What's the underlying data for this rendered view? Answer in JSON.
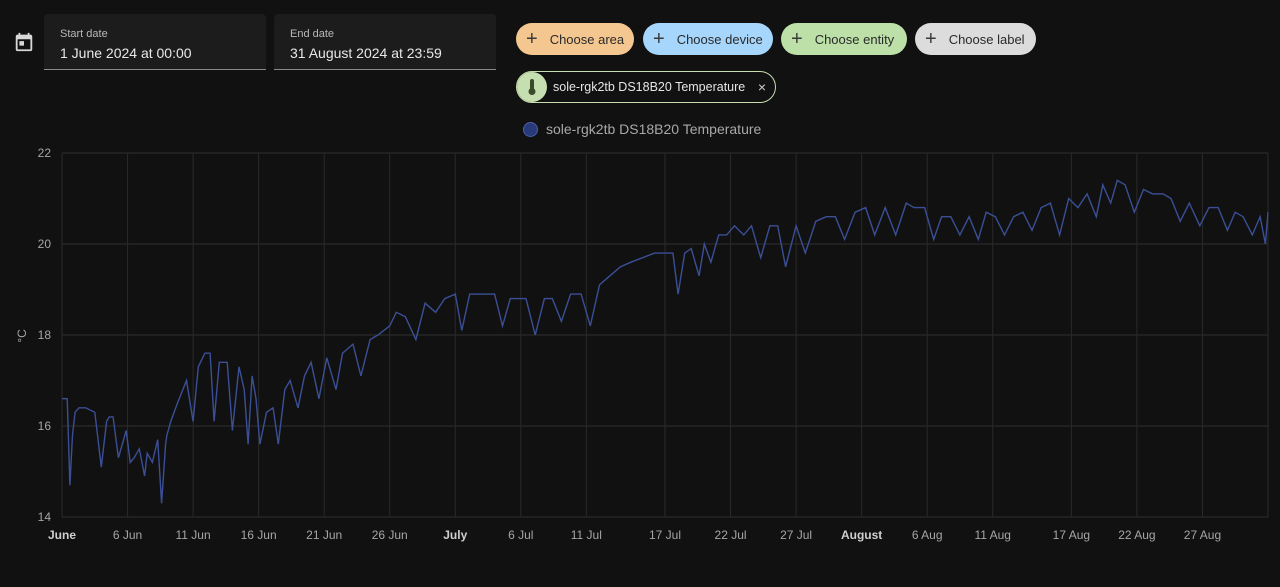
{
  "date_range": {
    "start_label": "Start date",
    "start_value": "1 June 2024 at 00:00",
    "end_label": "End date",
    "end_value": "31 August 2024 at 23:59"
  },
  "target_chips": [
    {
      "label": "Choose area",
      "color": "#f5c790"
    },
    {
      "label": "Choose device",
      "color": "#a6d6fb"
    },
    {
      "label": "Choose entity",
      "color": "#bce0a7"
    },
    {
      "label": "Choose label",
      "color": "#dcdcdc"
    }
  ],
  "selected_entity": {
    "name": "sole-rgk2tb DS18B20 Temperature",
    "icon": "thermometer-icon",
    "remove": "×"
  },
  "chart_data": {
    "type": "line",
    "legend_position": "top-center",
    "ylabel": "°C",
    "ylim": [
      14,
      22
    ],
    "yticks": [
      14,
      16,
      18,
      20,
      22
    ],
    "xlim_day": [
      1,
      93
    ],
    "grid": true,
    "x_ticks": [
      {
        "label": "June",
        "day": 1,
        "bold": true
      },
      {
        "label": "6 Jun",
        "day": 6
      },
      {
        "label": "11 Jun",
        "day": 11
      },
      {
        "label": "16 Jun",
        "day": 16
      },
      {
        "label": "21 Jun",
        "day": 21
      },
      {
        "label": "26 Jun",
        "day": 26
      },
      {
        "label": "July",
        "day": 31,
        "bold": true
      },
      {
        "label": "6 Jul",
        "day": 36
      },
      {
        "label": "11 Jul",
        "day": 41
      },
      {
        "label": "17 Jul",
        "day": 47
      },
      {
        "label": "22 Jul",
        "day": 52
      },
      {
        "label": "27 Jul",
        "day": 57
      },
      {
        "label": "August",
        "day": 62,
        "bold": true
      },
      {
        "label": "6 Aug",
        "day": 67
      },
      {
        "label": "11 Aug",
        "day": 72
      },
      {
        "label": "17 Aug",
        "day": 78
      },
      {
        "label": "22 Aug",
        "day": 83
      },
      {
        "label": "27 Aug",
        "day": 88
      }
    ],
    "series": [
      {
        "name": "sole-rgk2tb DS18B20 Temperature",
        "color": "#3b4f96",
        "x": [
          1,
          1.4,
          1.6,
          1.8,
          2,
          2.3,
          2.8,
          3.5,
          4,
          4.4,
          4.6,
          4.9,
          5.3,
          5.9,
          6.2,
          6.5,
          6.9,
          7.3,
          7.5,
          7.9,
          8.3,
          8.6,
          8.9,
          9,
          9.3,
          9.8,
          10.5,
          11,
          11.4,
          11.9,
          12.3,
          12.6,
          13,
          13.4,
          13.6,
          14,
          14.5,
          14.9,
          15.2,
          15.5,
          15.8,
          16.1,
          16.6,
          17.1,
          17.5,
          18,
          18.4,
          19,
          19.5,
          20,
          20.6,
          21.2,
          21.9,
          22.4,
          23.2,
          23.8,
          24.5,
          25.1,
          26,
          26.5,
          27.2,
          28,
          28.7,
          29.5,
          30.2,
          31,
          31.5,
          32.1,
          32.7,
          33.4,
          34,
          34.6,
          35.2,
          35.8,
          36.4,
          37.1,
          37.8,
          38.4,
          39.1,
          39.8,
          40.6,
          41.3,
          42,
          42.8,
          43.6,
          44.4,
          45.3,
          46.2,
          47,
          47.6,
          48,
          48.5,
          49,
          49.6,
          50,
          50.5,
          51.1,
          51.7,
          52.3,
          53,
          53.6,
          54.3,
          55,
          55.6,
          56.2,
          57,
          57.7,
          58.5,
          59.3,
          60,
          60.7,
          61.5,
          62.3,
          63,
          63.8,
          64.6,
          65.4,
          66,
          66.8,
          67.5,
          68.1,
          68.8,
          69.5,
          70.2,
          70.9,
          71.5,
          72.2,
          72.9,
          73.6,
          74.3,
          75,
          75.7,
          76.4,
          77.1,
          77.8,
          78.5,
          79.2,
          79.9,
          80.4,
          81,
          81.5,
          82.1,
          82.8,
          83.5,
          84.2,
          85,
          85.6,
          86.3,
          87,
          87.8,
          88.5,
          89.2,
          89.9,
          90.5,
          91.1,
          91.8,
          92.4,
          92.8,
          93
        ],
        "y": [
          16.6,
          16.6,
          14.7,
          15.8,
          16.3,
          16.4,
          16.4,
          16.3,
          15.1,
          16.1,
          16.2,
          16.2,
          15.3,
          15.9,
          15.2,
          15.3,
          15.5,
          14.9,
          15.4,
          15.2,
          15.7,
          14.3,
          15.6,
          15.8,
          16.1,
          16.5,
          17.0,
          16.1,
          17.3,
          17.6,
          17.6,
          16.1,
          17.4,
          17.4,
          17.4,
          15.9,
          17.3,
          16.8,
          15.6,
          17.1,
          16.6,
          15.6,
          16.3,
          16.4,
          15.6,
          16.8,
          17.0,
          16.4,
          17.1,
          17.4,
          16.6,
          17.5,
          16.8,
          17.6,
          17.8,
          17.1,
          17.9,
          18.0,
          18.2,
          18.5,
          18.4,
          17.9,
          18.7,
          18.5,
          18.8,
          18.9,
          18.1,
          18.9,
          18.9,
          18.9,
          18.9,
          18.2,
          18.8,
          18.8,
          18.8,
          18.0,
          18.8,
          18.8,
          18.3,
          18.9,
          18.9,
          18.2,
          19.1,
          19.3,
          19.5,
          19.6,
          19.7,
          19.8,
          19.8,
          19.8,
          18.9,
          19.8,
          19.9,
          19.3,
          20.0,
          19.6,
          20.2,
          20.2,
          20.4,
          20.2,
          20.4,
          19.7,
          20.4,
          20.4,
          19.5,
          20.4,
          19.8,
          20.5,
          20.6,
          20.6,
          20.1,
          20.7,
          20.8,
          20.2,
          20.8,
          20.2,
          20.9,
          20.8,
          20.8,
          20.1,
          20.6,
          20.6,
          20.2,
          20.6,
          20.1,
          20.7,
          20.6,
          20.2,
          20.6,
          20.7,
          20.3,
          20.8,
          20.9,
          20.2,
          21.0,
          20.8,
          21.1,
          20.6,
          21.3,
          20.9,
          21.4,
          21.3,
          20.7,
          21.2,
          21.1,
          21.1,
          21.0,
          20.5,
          20.9,
          20.4,
          20.8,
          20.8,
          20.3,
          20.7,
          20.6,
          20.2,
          20.6,
          20.0,
          20.7
        ]
      }
    ]
  }
}
